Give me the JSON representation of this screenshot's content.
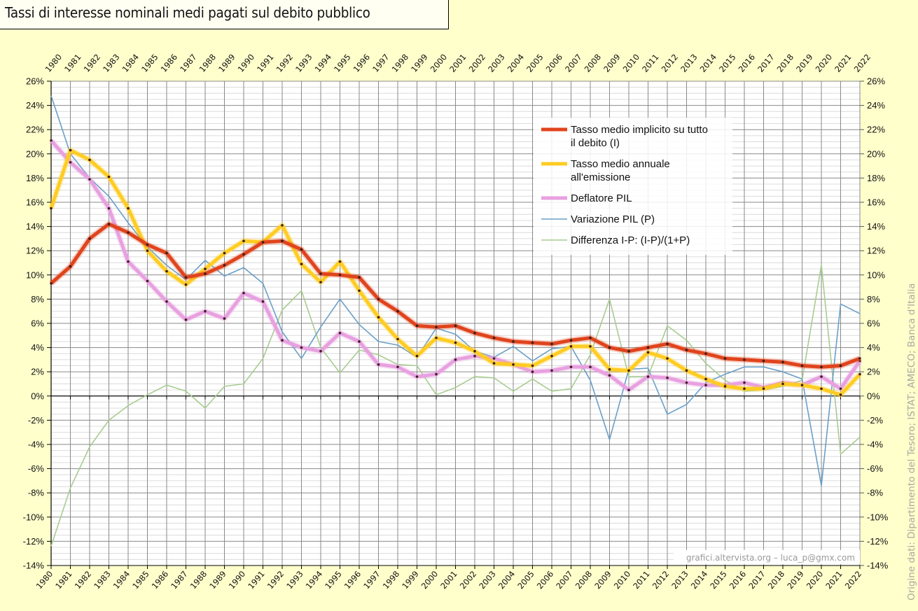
{
  "chart_data": {
    "type": "line",
    "title": "Tassi di interesse nominali medi pagati sul debito pubblico",
    "xlabel": "",
    "ylabel": "",
    "ylim": [
      -14,
      26
    ],
    "y_step": 2,
    "y_unit": "%",
    "y_ticks": [
      "26%",
      "24%",
      "22%",
      "20%",
      "18%",
      "16%",
      "14%",
      "12%",
      "10%",
      "8%",
      "6%",
      "4%",
      "2%",
      "0%",
      "-2%",
      "-4%",
      "-6%",
      "-8%",
      "-10%",
      "-12%",
      "-14%"
    ],
    "grid": true,
    "legend_position": "top-right",
    "x": [
      "1980",
      "1981",
      "1982",
      "1983",
      "1984",
      "1985",
      "1986",
      "1987",
      "1988",
      "1989",
      "1990",
      "1991",
      "1992",
      "1993",
      "1994",
      "1995",
      "1996",
      "1997",
      "1998",
      "1999",
      "2000",
      "2001",
      "2002",
      "2003",
      "2004",
      "2005",
      "2006",
      "2007",
      "2008",
      "2009",
      "2010",
      "2011",
      "2012",
      "2013",
      "2014",
      "2015",
      "2016",
      "2017",
      "2018",
      "2019",
      "2020",
      "2021",
      "2022"
    ],
    "series": [
      {
        "name": "Tasso medio implicito su tutto il debito (I)",
        "legend_lines": [
          "Tasso medio implicito su tutto",
          "il debito (I)"
        ],
        "color": "#e0441c",
        "style": "thick-markers",
        "values": [
          9.3,
          10.7,
          13.0,
          14.2,
          13.5,
          12.5,
          11.8,
          9.8,
          10.1,
          10.8,
          11.7,
          12.7,
          12.8,
          12.1,
          10.1,
          10.0,
          9.8,
          8.0,
          7.0,
          5.8,
          5.7,
          5.8,
          5.2,
          4.8,
          4.5,
          4.4,
          4.3,
          4.6,
          4.8,
          4.0,
          3.7,
          4.0,
          4.3,
          3.8,
          3.5,
          3.1,
          3.0,
          2.9,
          2.8,
          2.5,
          2.4,
          2.5,
          3.1
        ]
      },
      {
        "name": "Tasso medio annuale all'emissione",
        "legend_lines": [
          "Tasso medio annuale",
          "all'emissione"
        ],
        "color": "#ffcc22",
        "style": "thick-markers",
        "values": [
          15.5,
          20.3,
          19.5,
          18.1,
          15.5,
          12.0,
          10.3,
          9.2,
          10.5,
          11.8,
          12.8,
          12.7,
          14.1,
          10.9,
          9.4,
          11.1,
          8.7,
          6.5,
          4.7,
          3.3,
          4.8,
          4.4,
          3.7,
          2.7,
          2.6,
          2.5,
          3.3,
          4.1,
          4.1,
          2.2,
          2.1,
          3.6,
          3.1,
          2.1,
          1.4,
          0.8,
          0.6,
          0.6,
          1.0,
          0.9,
          0.6,
          0.1,
          1.8
        ]
      },
      {
        "name": "Deflatore PIL",
        "legend_lines": [
          "Deflatore PIL"
        ],
        "color": "#e8a0e0",
        "style": "thick-markers",
        "values": [
          21.1,
          19.3,
          17.9,
          15.5,
          11.1,
          9.5,
          7.8,
          6.3,
          7.0,
          6.4,
          8.5,
          7.8,
          4.6,
          4.0,
          3.7,
          5.2,
          4.5,
          2.6,
          2.4,
          1.6,
          1.8,
          3.0,
          3.3,
          3.1,
          2.6,
          2.0,
          2.1,
          2.4,
          2.4,
          1.7,
          0.5,
          1.6,
          1.5,
          1.1,
          0.9,
          0.9,
          1.1,
          0.7,
          1.1,
          0.9,
          1.6,
          0.6,
          2.9
        ]
      },
      {
        "name": "Variazione PIL (P)",
        "legend_lines": [
          "Variazione PIL (P)"
        ],
        "color": "#6a9fc8",
        "style": "thin",
        "values": [
          24.8,
          20.0,
          18.0,
          16.5,
          14.3,
          12.3,
          10.8,
          9.6,
          11.2,
          9.9,
          10.6,
          9.3,
          5.3,
          3.1,
          5.7,
          8.0,
          5.9,
          4.5,
          4.2,
          3.2,
          5.6,
          5.1,
          3.7,
          3.2,
          4.1,
          2.9,
          3.9,
          4.1,
          1.3,
          -3.6,
          2.2,
          2.3,
          -1.5,
          -0.7,
          1.1,
          1.8,
          2.4,
          2.4,
          2.0,
          1.4,
          -7.4,
          7.6,
          6.8
        ]
      },
      {
        "name": "Differenza I-P: (I-P)/(1+P)",
        "legend_lines": [
          "Differenza I-P: (I-P)/(1+P)"
        ],
        "color": "#a8cc90",
        "style": "thin",
        "values": [
          -12.4,
          -7.6,
          -4.2,
          -2.0,
          -0.8,
          0.1,
          0.9,
          0.4,
          -1.0,
          0.8,
          1.0,
          3.1,
          7.1,
          8.7,
          4.0,
          1.9,
          3.8,
          3.4,
          2.6,
          2.5,
          0.1,
          0.7,
          1.6,
          1.5,
          0.4,
          1.4,
          0.4,
          0.6,
          3.4,
          8.0,
          1.6,
          1.6,
          5.8,
          4.6,
          2.7,
          1.3,
          0.4,
          0.5,
          0.8,
          1.3,
          10.8,
          -4.8,
          -3.4
        ]
      }
    ],
    "annotations": {
      "credit": "grafici.altervista.org – luca_p@gmx.com",
      "source": "Origine dati: Dipartimento del Tesoro; ISTAT; AMECO; Banca d'Italia"
    }
  }
}
